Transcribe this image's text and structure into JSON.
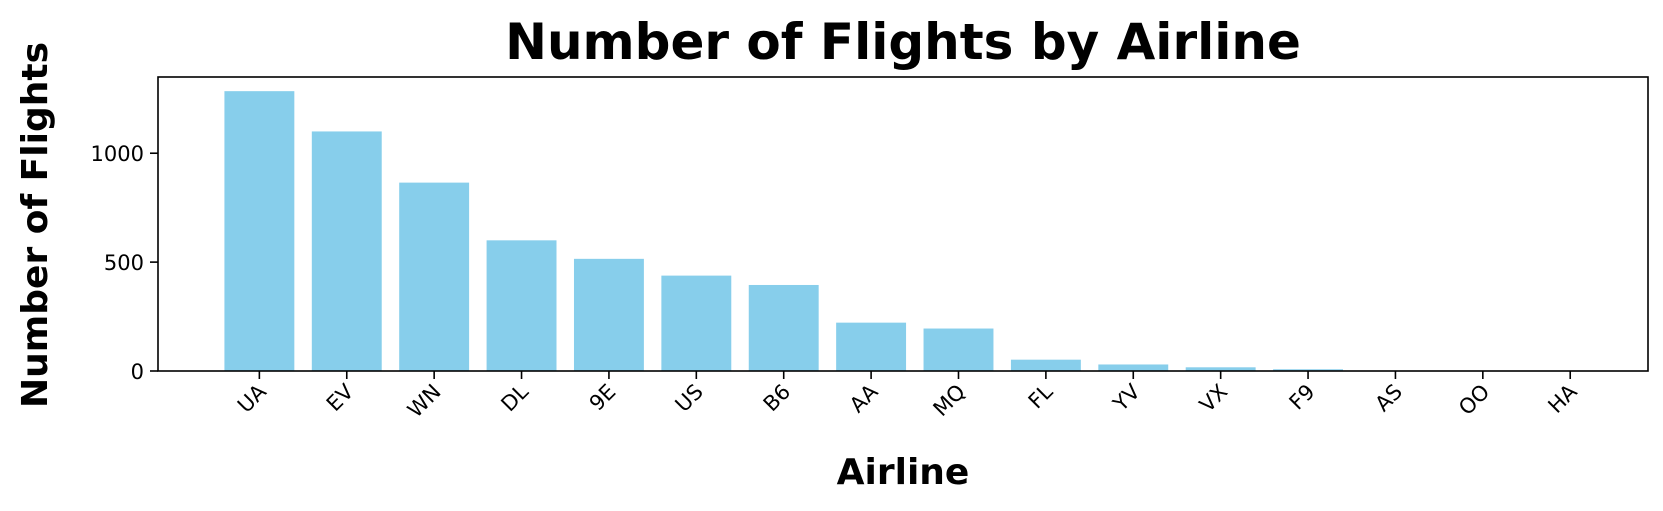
{
  "chart_data": {
    "type": "bar",
    "title": "Number of Flights by Airline",
    "xlabel": "Airline",
    "ylabel": "Number of Flights",
    "categories": [
      "UA",
      "EV",
      "WN",
      "DL",
      "9E",
      "US",
      "B6",
      "AA",
      "MQ",
      "FL",
      "YV",
      "VX",
      "F9",
      "AS",
      "OO",
      "HA"
    ],
    "values": [
      1285,
      1100,
      865,
      600,
      515,
      438,
      395,
      222,
      195,
      52,
      30,
      17,
      8,
      2,
      1,
      1
    ],
    "ylim": [
      0,
      1350
    ],
    "yticks": [
      0,
      500,
      1000
    ],
    "xtick_rotation": 45,
    "bar_color": "#87ceeb",
    "grid": false,
    "legend": false
  }
}
